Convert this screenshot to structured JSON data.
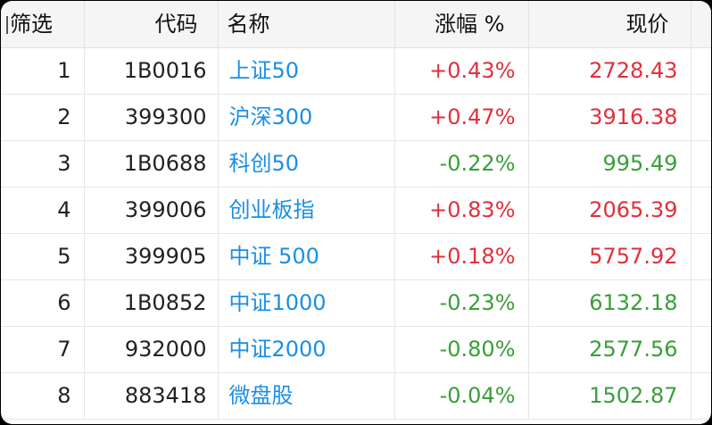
{
  "header": {
    "filter_label": "筛选",
    "code_label": "代码",
    "name_label": "名称",
    "change_label": "涨幅 %",
    "price_label": "现价"
  },
  "colors": {
    "up": "#e0303b",
    "down": "#3a9e3a",
    "name": "#1a8fe3"
  },
  "rows": [
    {
      "rank": "1",
      "code": "1B0016",
      "name": "上证50",
      "change": "+0.43%",
      "price": "2728.43",
      "direction": "up"
    },
    {
      "rank": "2",
      "code": "399300",
      "name": "沪深300",
      "change": "+0.47%",
      "price": "3916.38",
      "direction": "up"
    },
    {
      "rank": "3",
      "code": "1B0688",
      "name": "科创50",
      "change": "-0.22%",
      "price": "995.49",
      "direction": "down"
    },
    {
      "rank": "4",
      "code": "399006",
      "name": "创业板指",
      "change": "+0.83%",
      "price": "2065.39",
      "direction": "up"
    },
    {
      "rank": "5",
      "code": "399905",
      "name": "中证 500",
      "change": "+0.18%",
      "price": "5757.92",
      "direction": "up"
    },
    {
      "rank": "6",
      "code": "1B0852",
      "name": "中证1000",
      "change": "-0.23%",
      "price": "6132.18",
      "direction": "down"
    },
    {
      "rank": "7",
      "code": "932000",
      "name": "中证2000",
      "change": "-0.80%",
      "price": "2577.56",
      "direction": "down"
    },
    {
      "rank": "8",
      "code": "883418",
      "name": "微盘股",
      "change": "-0.04%",
      "price": "1502.87",
      "direction": "down"
    }
  ]
}
